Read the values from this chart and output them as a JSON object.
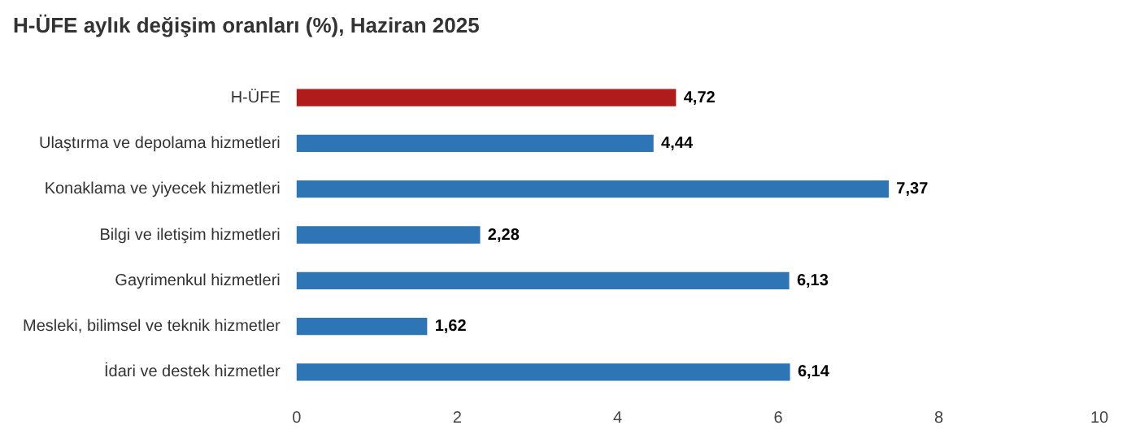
{
  "chart_data": {
    "type": "bar",
    "orientation": "horizontal",
    "title": "H-ÜFE aylık değişim oranları (%), Haziran 2025",
    "categories": [
      "H-ÜFE",
      "Ulaştırma ve depolama hizmetleri",
      "Konaklama ve yiyecek hizmetleri",
      "Bilgi ve iletişim hizmetleri",
      "Gayrimenkul hizmetleri",
      "Mesleki, bilimsel ve teknik hizmetler",
      "İdari ve destek hizmetler"
    ],
    "values": [
      4.72,
      4.44,
      7.37,
      2.28,
      6.13,
      1.62,
      6.14
    ],
    "value_labels": [
      "4,72",
      "4,44",
      "7,37",
      "2,28",
      "6,13",
      "1,62",
      "6,14"
    ],
    "colors": [
      "#b01c1c",
      "#2e75b6",
      "#2e75b6",
      "#2e75b6",
      "#2e75b6",
      "#2e75b6",
      "#2e75b6"
    ],
    "xlim": [
      0,
      10
    ],
    "xticks": [
      0,
      2,
      4,
      6,
      8,
      10
    ],
    "grid": false,
    "legend": false
  }
}
